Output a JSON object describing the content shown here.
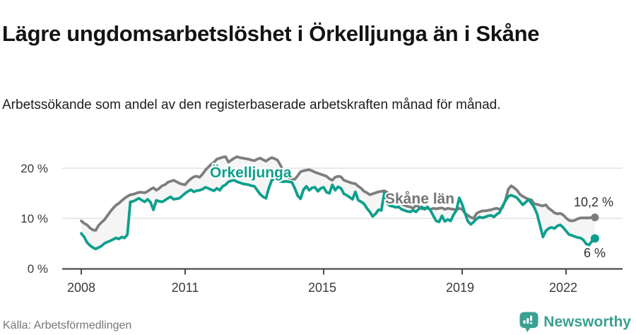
{
  "title": "Lägre ungdomsarbetslöshet i Örkelljunga än i Skåne",
  "subtitle": "Arbetssökande som andel av den registerbaserade arbetskraften månad för månad.",
  "source": "Källa: Arbetsförmedlingen",
  "brand": {
    "name": "Newsworthy",
    "icon": "bar-chart-speech-bubble-icon",
    "color": "#3aa091"
  },
  "chart_data": {
    "type": "line",
    "x_start_year": 2008,
    "x_step_months": 1,
    "x_axis": {
      "tick_labels": [
        "2008",
        "2011",
        "2015",
        "2019",
        "2022"
      ],
      "tick_years": [
        2008,
        2011,
        2015,
        2019,
        2022
      ],
      "range_years": [
        2007.45,
        2023.6
      ]
    },
    "y_axis": {
      "tick_labels": [
        "0 %",
        "10 %",
        "20 %"
      ],
      "ticks_percent": [
        0,
        10,
        20
      ],
      "range_percent": [
        0,
        26
      ],
      "grid": true
    },
    "band_fill_between_series": true,
    "band_color": "#f5f5f5",
    "grid_color": "#dcdcdc",
    "axis_color": "#4d4d4d",
    "series": [
      {
        "name": "Skåne län",
        "color": "#7d7d7d",
        "end_label": "10,2 %",
        "end_value": 10.2,
        "values": [
          9.5,
          9.0,
          8.7,
          8.1,
          7.7,
          7.6,
          8.6,
          9.2,
          9.7,
          10.5,
          11.3,
          12.0,
          12.6,
          13.0,
          13.5,
          14.0,
          14.4,
          14.7,
          14.8,
          15.0,
          15.2,
          15.2,
          15.1,
          15.4,
          15.8,
          16.1,
          15.6,
          16.0,
          16.5,
          16.7,
          17.2,
          17.4,
          17.6,
          17.3,
          17.0,
          16.8,
          16.7,
          17.4,
          17.9,
          18.3,
          18.4,
          18.2,
          18.8,
          19.6,
          20.2,
          20.8,
          21.2,
          21.8,
          22.0,
          22.2,
          22.3,
          21.2,
          21.6,
          22.0,
          22.3,
          22.1,
          22.0,
          21.9,
          21.8,
          21.6,
          21.5,
          21.8,
          22.0,
          21.7,
          21.4,
          21.8,
          22.1,
          21.9,
          21.6,
          20.6,
          19.5,
          18.4,
          18.1,
          17.9,
          17.8,
          18.5,
          19.3,
          19.5,
          19.6,
          19.7,
          19.5,
          19.2,
          19.0,
          18.8,
          18.6,
          18.4,
          17.9,
          17.6,
          18.2,
          18.4,
          18.3,
          17.6,
          17.4,
          17.2,
          17.0,
          16.9,
          16.4,
          16.0,
          15.4,
          15.1,
          14.7,
          14.9,
          15.1,
          15.3,
          15.4,
          15.5,
          15.2,
          14.7,
          14.2,
          13.7,
          13.3,
          12.9,
          12.6,
          12.4,
          12.3,
          12.0,
          12.6,
          12.3,
          11.9,
          12.1,
          12.0,
          11.8,
          12.0,
          11.9,
          12.0,
          12.1,
          11.8,
          12.0,
          11.9,
          11.8,
          11.7,
          12.0,
          11.8,
          11.0,
          10.6,
          10.2,
          10.0,
          11.0,
          11.3,
          11.5,
          11.5,
          11.6,
          11.7,
          11.9,
          12.0,
          11.8,
          12.2,
          13.7,
          15.8,
          16.5,
          16.1,
          15.6,
          14.8,
          14.4,
          14.1,
          13.8,
          13.7,
          12.9,
          12.8,
          12.6,
          12.5,
          12.7,
          12.0,
          11.6,
          11.1,
          10.9,
          11.0,
          10.7,
          10.1,
          9.6,
          9.5,
          9.6,
          9.9,
          10.1,
          10.1,
          10.1,
          10.1,
          10.15,
          10.2
        ]
      },
      {
        "name": "Örkelljunga",
        "color": "#0d9f8d",
        "end_label": "6 %",
        "end_value": 6.0,
        "values": [
          7.0,
          6.3,
          5.2,
          4.6,
          4.2,
          3.9,
          4.2,
          4.5,
          5.0,
          5.3,
          5.5,
          5.8,
          6.1,
          5.9,
          6.3,
          6.1,
          6.8,
          13.3,
          13.4,
          13.7,
          14.0,
          13.6,
          13.3,
          13.8,
          13.2,
          11.7,
          13.6,
          13.4,
          13.3,
          13.6,
          14.0,
          14.3,
          13.8,
          13.9,
          14.0,
          14.5,
          15.0,
          15.4,
          15.7,
          15.3,
          15.5,
          15.6,
          15.8,
          16.2,
          16.0,
          15.7,
          15.5,
          16.0,
          15.6,
          16.4,
          16.7,
          17.3,
          17.5,
          17.6,
          17.3,
          17.1,
          16.9,
          16.8,
          16.7,
          16.5,
          16.4,
          15.6,
          14.8,
          14.3,
          14.0,
          16.0,
          17.6,
          17.9,
          17.6,
          17.4,
          17.3,
          17.4,
          17.3,
          17.2,
          16.0,
          14.5,
          13.9,
          15.7,
          16.4,
          15.6,
          16.1,
          16.2,
          15.4,
          16.0,
          16.2,
          15.2,
          15.0,
          16.7,
          15.6,
          16.3,
          16.0,
          14.9,
          14.6,
          14.2,
          13.8,
          15.3,
          13.6,
          13.3,
          12.9,
          12.0,
          11.3,
          10.4,
          10.9,
          11.7,
          11.6,
          15.1,
          13.0,
          12.5,
          12.4,
          12.2,
          12.3,
          11.8,
          11.6,
          11.4,
          11.3,
          11.6,
          11.3,
          11.9,
          12.3,
          11.8,
          12.3,
          11.6,
          10.5,
          9.5,
          9.3,
          10.5,
          9.4,
          9.8,
          9.5,
          10.7,
          11.6,
          14.1,
          12.8,
          11.0,
          9.4,
          8.8,
          9.3,
          9.9,
          10.3,
          10.1,
          10.3,
          10.5,
          10.6,
          10.3,
          10.8,
          11.2,
          12.5,
          13.5,
          14.4,
          14.6,
          14.4,
          14.1,
          13.4,
          12.7,
          13.2,
          13.8,
          13.0,
          12.2,
          10.8,
          8.5,
          6.3,
          7.5,
          8.0,
          8.2,
          8.0,
          8.5,
          8.7,
          8.2,
          7.5,
          6.8,
          6.6,
          6.4,
          6.2,
          6.1,
          5.7,
          4.9,
          4.7,
          5.5,
          6.0
        ]
      }
    ]
  }
}
